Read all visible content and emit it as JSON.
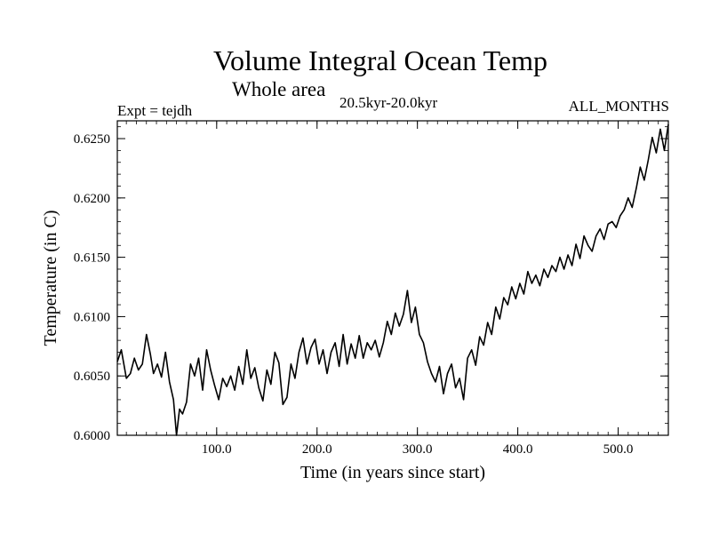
{
  "chart_data": {
    "type": "line",
    "title": "Volume Integral Ocean Temp",
    "subtitle": "Whole area",
    "period_label": "20.5kyr-20.0kyr",
    "experiment_label": "Expt = tejdh",
    "months_label": "ALL_MONTHS",
    "xlabel": "Time (in years since start)",
    "ylabel": "Temperature (in C)",
    "xlim": [
      1,
      550
    ],
    "ylim": [
      0.6,
      0.6265
    ],
    "x_ticks": [
      {
        "value": 100,
        "label": "100.0"
      },
      {
        "value": 200,
        "label": "200.0"
      },
      {
        "value": 300,
        "label": "300.0"
      },
      {
        "value": 400,
        "label": "400.0"
      },
      {
        "value": 500,
        "label": "500.0"
      }
    ],
    "x_minor_step": 10,
    "y_ticks": [
      {
        "value": 0.6,
        "label": "0.6000"
      },
      {
        "value": 0.605,
        "label": "0.6050"
      },
      {
        "value": 0.61,
        "label": "0.6100"
      },
      {
        "value": 0.615,
        "label": "0.6150"
      },
      {
        "value": 0.62,
        "label": "0.6200"
      },
      {
        "value": 0.625,
        "label": "0.6250"
      }
    ],
    "y_minor_step": 0.001,
    "grid": false,
    "series": [
      {
        "name": "Volume integral ocean temperature",
        "color": "#000000",
        "x": [
          1,
          5,
          10,
          14,
          18,
          22,
          26,
          30,
          34,
          37,
          41,
          45,
          49,
          53,
          57,
          60,
          63,
          66,
          70,
          74,
          78,
          82,
          86,
          90,
          94,
          98,
          102,
          106,
          110,
          114,
          118,
          122,
          126,
          130,
          134,
          138,
          142,
          146,
          150,
          154,
          158,
          162,
          166,
          170,
          174,
          178,
          182,
          186,
          190,
          194,
          198,
          202,
          206,
          210,
          214,
          218,
          222,
          226,
          230,
          234,
          238,
          242,
          246,
          250,
          254,
          258,
          262,
          266,
          270,
          274,
          278,
          282,
          286,
          290,
          294,
          298,
          302,
          306,
          310,
          314,
          318,
          322,
          326,
          330,
          334,
          338,
          342,
          346,
          350,
          354,
          358,
          362,
          366,
          370,
          374,
          378,
          382,
          386,
          390,
          394,
          398,
          402,
          406,
          410,
          414,
          418,
          422,
          426,
          430,
          434,
          438,
          442,
          446,
          450,
          454,
          458,
          462,
          466,
          470,
          474,
          478,
          482,
          486,
          490,
          494,
          498,
          502,
          506,
          510,
          514,
          518,
          522,
          526,
          530,
          534,
          538,
          542,
          546,
          550
        ],
        "values": [
          0.6062,
          0.6072,
          0.6048,
          0.6052,
          0.6065,
          0.6055,
          0.606,
          0.6085,
          0.6068,
          0.6052,
          0.606,
          0.6049,
          0.607,
          0.6045,
          0.603,
          0.6,
          0.6022,
          0.6018,
          0.6028,
          0.606,
          0.605,
          0.6065,
          0.6038,
          0.6072,
          0.6055,
          0.6042,
          0.603,
          0.6048,
          0.6041,
          0.605,
          0.6038,
          0.6058,
          0.6043,
          0.6072,
          0.6048,
          0.6057,
          0.604,
          0.6029,
          0.6055,
          0.6043,
          0.607,
          0.6061,
          0.6026,
          0.6032,
          0.606,
          0.6048,
          0.607,
          0.6082,
          0.606,
          0.6074,
          0.6081,
          0.606,
          0.6072,
          0.6052,
          0.607,
          0.6078,
          0.6058,
          0.6085,
          0.606,
          0.6077,
          0.6065,
          0.6084,
          0.6065,
          0.6078,
          0.6072,
          0.608,
          0.6066,
          0.6078,
          0.6096,
          0.6085,
          0.6103,
          0.6092,
          0.6102,
          0.6122,
          0.6095,
          0.6108,
          0.6085,
          0.6078,
          0.6062,
          0.6052,
          0.6045,
          0.6058,
          0.6035,
          0.6052,
          0.606,
          0.604,
          0.6048,
          0.603,
          0.6065,
          0.6072,
          0.6059,
          0.6083,
          0.6076,
          0.6095,
          0.6085,
          0.6108,
          0.6098,
          0.6116,
          0.611,
          0.6125,
          0.6115,
          0.6128,
          0.6119,
          0.6138,
          0.6128,
          0.6135,
          0.6126,
          0.614,
          0.6133,
          0.6143,
          0.6138,
          0.615,
          0.614,
          0.6152,
          0.6143,
          0.6161,
          0.6149,
          0.6168,
          0.616,
          0.6155,
          0.6168,
          0.6174,
          0.6165,
          0.6178,
          0.618,
          0.6175,
          0.6185,
          0.619,
          0.62,
          0.6192,
          0.6208,
          0.6226,
          0.6215,
          0.6232,
          0.6251,
          0.6238,
          0.6258,
          0.624,
          0.6262
        ]
      }
    ]
  }
}
